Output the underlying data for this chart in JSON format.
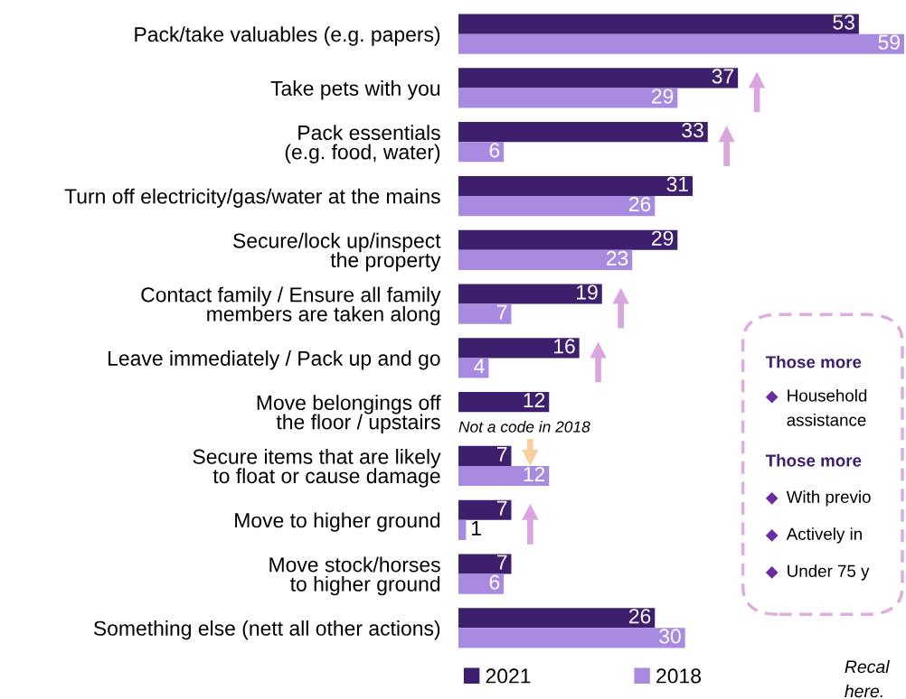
{
  "chart_data": {
    "type": "bar",
    "orientation": "horizontal",
    "categories": [
      "Pack/take valuables (e.g. papers)",
      "Take pets with you",
      "Pack essentials\n(e.g. food, water)",
      "Turn off electricity/gas/water at the mains",
      "Secure/lock up/inspect\nthe property",
      "Contact family / Ensure all family\nmembers are taken along",
      "Leave immediately / Pack up and go",
      "Move belongings off\nthe floor / upstairs",
      "Secure items that are likely\nto float or cause damage",
      "Move to higher ground",
      "Move stock/horses\nto higher ground",
      "Something else (nett all other actions)"
    ],
    "series": [
      {
        "name": "2021",
        "color": "#3d1f6e",
        "values": [
          53,
          37,
          33,
          31,
          29,
          19,
          16,
          12,
          7,
          7,
          7,
          26
        ]
      },
      {
        "name": "2018",
        "color": "#a88be0",
        "values": [
          59,
          29,
          6,
          26,
          23,
          7,
          4,
          null,
          12,
          1,
          6,
          30
        ]
      }
    ],
    "data_labels": true,
    "legend": "bottom",
    "annotations": [
      {
        "text": "Not a code in 2018",
        "y": "Move belongings off\nthe floor / upstairs"
      },
      "Those more",
      "Household",
      "assistance",
      "Those more",
      "With previo",
      "Actively in",
      "Under 75 y",
      "Recal",
      "here."
    ]
  }
}
